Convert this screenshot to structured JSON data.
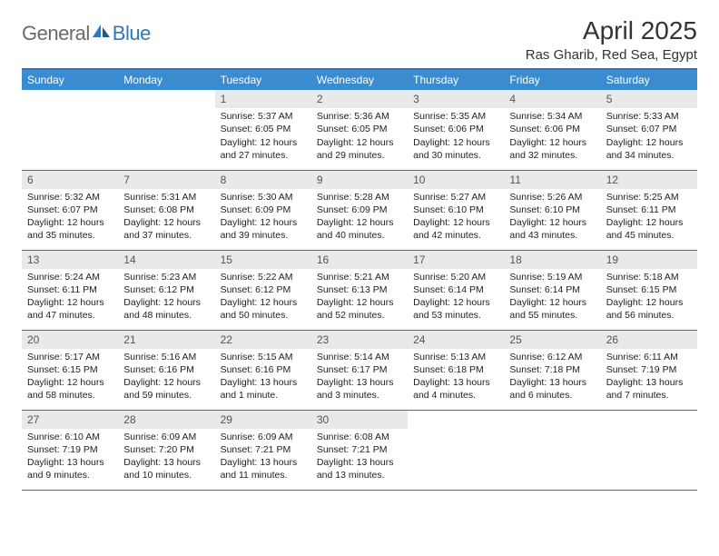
{
  "logo": {
    "general": "General",
    "blue": "Blue"
  },
  "title": "April 2025",
  "location": "Ras Gharib, Red Sea, Egypt",
  "day_headers": [
    "Sunday",
    "Monday",
    "Tuesday",
    "Wednesday",
    "Thursday",
    "Friday",
    "Saturday"
  ],
  "colors": {
    "header_bg": "#3a8bcf",
    "header_border": "#2e77bb",
    "daynum_bg": "#e9e9e9",
    "logo_gray": "#6a6a6a",
    "logo_blue": "#2e77bb"
  },
  "weeks": [
    [
      {
        "empty": true
      },
      {
        "empty": true
      },
      {
        "day": "1",
        "sunrise": "Sunrise: 5:37 AM",
        "sunset": "Sunset: 6:05 PM",
        "daylight": "Daylight: 12 hours and 27 minutes."
      },
      {
        "day": "2",
        "sunrise": "Sunrise: 5:36 AM",
        "sunset": "Sunset: 6:05 PM",
        "daylight": "Daylight: 12 hours and 29 minutes."
      },
      {
        "day": "3",
        "sunrise": "Sunrise: 5:35 AM",
        "sunset": "Sunset: 6:06 PM",
        "daylight": "Daylight: 12 hours and 30 minutes."
      },
      {
        "day": "4",
        "sunrise": "Sunrise: 5:34 AM",
        "sunset": "Sunset: 6:06 PM",
        "daylight": "Daylight: 12 hours and 32 minutes."
      },
      {
        "day": "5",
        "sunrise": "Sunrise: 5:33 AM",
        "sunset": "Sunset: 6:07 PM",
        "daylight": "Daylight: 12 hours and 34 minutes."
      }
    ],
    [
      {
        "day": "6",
        "sunrise": "Sunrise: 5:32 AM",
        "sunset": "Sunset: 6:07 PM",
        "daylight": "Daylight: 12 hours and 35 minutes."
      },
      {
        "day": "7",
        "sunrise": "Sunrise: 5:31 AM",
        "sunset": "Sunset: 6:08 PM",
        "daylight": "Daylight: 12 hours and 37 minutes."
      },
      {
        "day": "8",
        "sunrise": "Sunrise: 5:30 AM",
        "sunset": "Sunset: 6:09 PM",
        "daylight": "Daylight: 12 hours and 39 minutes."
      },
      {
        "day": "9",
        "sunrise": "Sunrise: 5:28 AM",
        "sunset": "Sunset: 6:09 PM",
        "daylight": "Daylight: 12 hours and 40 minutes."
      },
      {
        "day": "10",
        "sunrise": "Sunrise: 5:27 AM",
        "sunset": "Sunset: 6:10 PM",
        "daylight": "Daylight: 12 hours and 42 minutes."
      },
      {
        "day": "11",
        "sunrise": "Sunrise: 5:26 AM",
        "sunset": "Sunset: 6:10 PM",
        "daylight": "Daylight: 12 hours and 43 minutes."
      },
      {
        "day": "12",
        "sunrise": "Sunrise: 5:25 AM",
        "sunset": "Sunset: 6:11 PM",
        "daylight": "Daylight: 12 hours and 45 minutes."
      }
    ],
    [
      {
        "day": "13",
        "sunrise": "Sunrise: 5:24 AM",
        "sunset": "Sunset: 6:11 PM",
        "daylight": "Daylight: 12 hours and 47 minutes."
      },
      {
        "day": "14",
        "sunrise": "Sunrise: 5:23 AM",
        "sunset": "Sunset: 6:12 PM",
        "daylight": "Daylight: 12 hours and 48 minutes."
      },
      {
        "day": "15",
        "sunrise": "Sunrise: 5:22 AM",
        "sunset": "Sunset: 6:12 PM",
        "daylight": "Daylight: 12 hours and 50 minutes."
      },
      {
        "day": "16",
        "sunrise": "Sunrise: 5:21 AM",
        "sunset": "Sunset: 6:13 PM",
        "daylight": "Daylight: 12 hours and 52 minutes."
      },
      {
        "day": "17",
        "sunrise": "Sunrise: 5:20 AM",
        "sunset": "Sunset: 6:14 PM",
        "daylight": "Daylight: 12 hours and 53 minutes."
      },
      {
        "day": "18",
        "sunrise": "Sunrise: 5:19 AM",
        "sunset": "Sunset: 6:14 PM",
        "daylight": "Daylight: 12 hours and 55 minutes."
      },
      {
        "day": "19",
        "sunrise": "Sunrise: 5:18 AM",
        "sunset": "Sunset: 6:15 PM",
        "daylight": "Daylight: 12 hours and 56 minutes."
      }
    ],
    [
      {
        "day": "20",
        "sunrise": "Sunrise: 5:17 AM",
        "sunset": "Sunset: 6:15 PM",
        "daylight": "Daylight: 12 hours and 58 minutes."
      },
      {
        "day": "21",
        "sunrise": "Sunrise: 5:16 AM",
        "sunset": "Sunset: 6:16 PM",
        "daylight": "Daylight: 12 hours and 59 minutes."
      },
      {
        "day": "22",
        "sunrise": "Sunrise: 5:15 AM",
        "sunset": "Sunset: 6:16 PM",
        "daylight": "Daylight: 13 hours and 1 minute."
      },
      {
        "day": "23",
        "sunrise": "Sunrise: 5:14 AM",
        "sunset": "Sunset: 6:17 PM",
        "daylight": "Daylight: 13 hours and 3 minutes."
      },
      {
        "day": "24",
        "sunrise": "Sunrise: 5:13 AM",
        "sunset": "Sunset: 6:18 PM",
        "daylight": "Daylight: 13 hours and 4 minutes."
      },
      {
        "day": "25",
        "sunrise": "Sunrise: 6:12 AM",
        "sunset": "Sunset: 7:18 PM",
        "daylight": "Daylight: 13 hours and 6 minutes."
      },
      {
        "day": "26",
        "sunrise": "Sunrise: 6:11 AM",
        "sunset": "Sunset: 7:19 PM",
        "daylight": "Daylight: 13 hours and 7 minutes."
      }
    ],
    [
      {
        "day": "27",
        "sunrise": "Sunrise: 6:10 AM",
        "sunset": "Sunset: 7:19 PM",
        "daylight": "Daylight: 13 hours and 9 minutes."
      },
      {
        "day": "28",
        "sunrise": "Sunrise: 6:09 AM",
        "sunset": "Sunset: 7:20 PM",
        "daylight": "Daylight: 13 hours and 10 minutes."
      },
      {
        "day": "29",
        "sunrise": "Sunrise: 6:09 AM",
        "sunset": "Sunset: 7:21 PM",
        "daylight": "Daylight: 13 hours and 11 minutes."
      },
      {
        "day": "30",
        "sunrise": "Sunrise: 6:08 AM",
        "sunset": "Sunset: 7:21 PM",
        "daylight": "Daylight: 13 hours and 13 minutes."
      },
      {
        "empty": true
      },
      {
        "empty": true
      },
      {
        "empty": true
      }
    ]
  ]
}
